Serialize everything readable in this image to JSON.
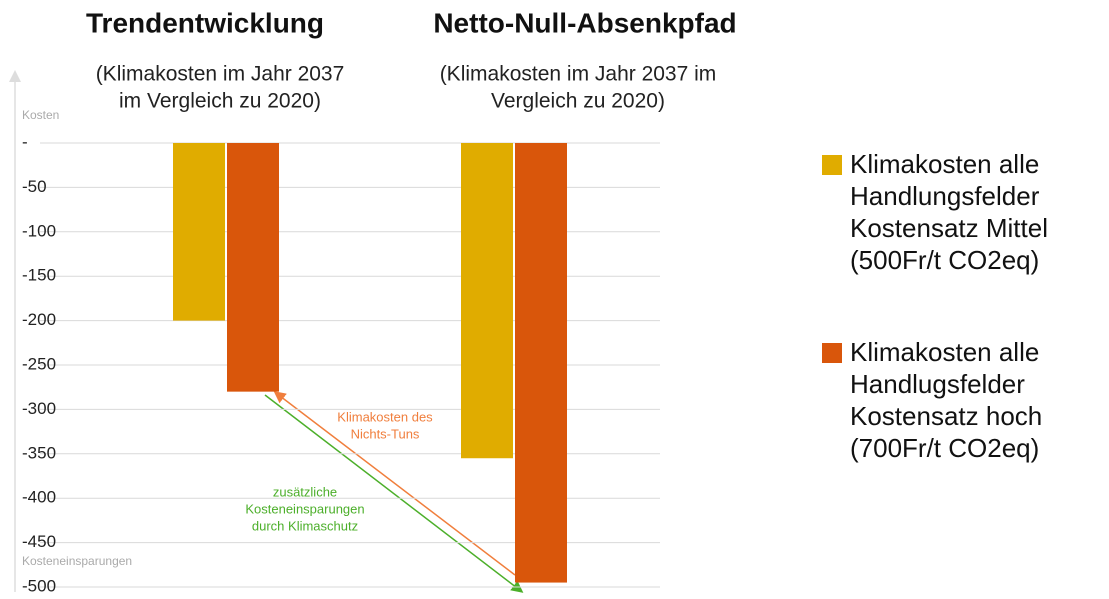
{
  "chart_data": {
    "type": "bar",
    "categories": [
      "Trendentwicklung",
      "Netto-Null-Absenkpfad"
    ],
    "category_notes": [
      [
        "(Klimakosten im Jahr 2037",
        "im Vergleich zu 2020)"
      ],
      [
        "(Klimakosten im Jahr 2037 im",
        "Vergleich zu 2020)"
      ]
    ],
    "series": [
      {
        "name": "Klimakosten alle Handlungsfelder Kostensatz Mittel (500Fr/t CO2eq)",
        "color": "#e0ac00",
        "values": [
          -200,
          -355
        ]
      },
      {
        "name": "Klimakosten alle Handlugsfelder Kostensatz hoch (700Fr/t CO2eq)",
        "color": "#d9560b",
        "values": [
          -280,
          -495
        ]
      }
    ],
    "ylim": [
      -500,
      0
    ],
    "yticks": [
      {
        "value": 0,
        "label": "-"
      },
      -50,
      -100,
      -150,
      -200,
      -250,
      -300,
      -350,
      -400,
      -450,
      -500
    ],
    "y_axis_top_label": "Kosten",
    "y_axis_bottom_label": "Kosteneinsparungen",
    "annotations": [
      {
        "lines": [
          "Klimakosten des",
          "Nichts-Tuns"
        ],
        "color": "#f07e3c"
      },
      {
        "lines": [
          "zusätzliche",
          "Kosteneinsparungen",
          "durch Klimaschutz"
        ],
        "color": "#4caf2a"
      }
    ],
    "grid": true,
    "legend": "right"
  }
}
